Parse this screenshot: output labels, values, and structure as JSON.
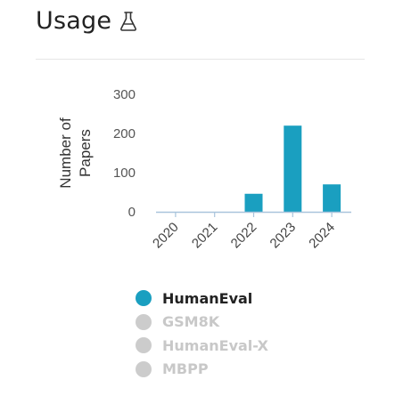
{
  "header": {
    "title": "Usage",
    "icon": "flask-icon"
  },
  "chart_data": {
    "type": "bar",
    "ylabel": "Number of Papers",
    "ylabel_lines": [
      "Number of",
      "Papers"
    ],
    "categories": [
      "2020",
      "2021",
      "2022",
      "2023",
      "2024"
    ],
    "ylim": [
      0,
      300
    ],
    "yticks": [
      0,
      100,
      200,
      300
    ],
    "series": [
      {
        "name": "HumanEval",
        "values": [
          0,
          0,
          46,
          220,
          70
        ],
        "color": "#1a9fc0"
      }
    ],
    "grid": false,
    "legend": "bottom"
  },
  "legend": {
    "items": [
      {
        "label": "HumanEval",
        "color": "#1a9fc0",
        "active": true
      },
      {
        "label": "GSM8K",
        "color": "#cccccc",
        "active": false
      },
      {
        "label": "HumanEval-X",
        "color": "#cccccc",
        "active": false
      },
      {
        "label": "MBPP",
        "color": "#cccccc",
        "active": false
      }
    ]
  }
}
